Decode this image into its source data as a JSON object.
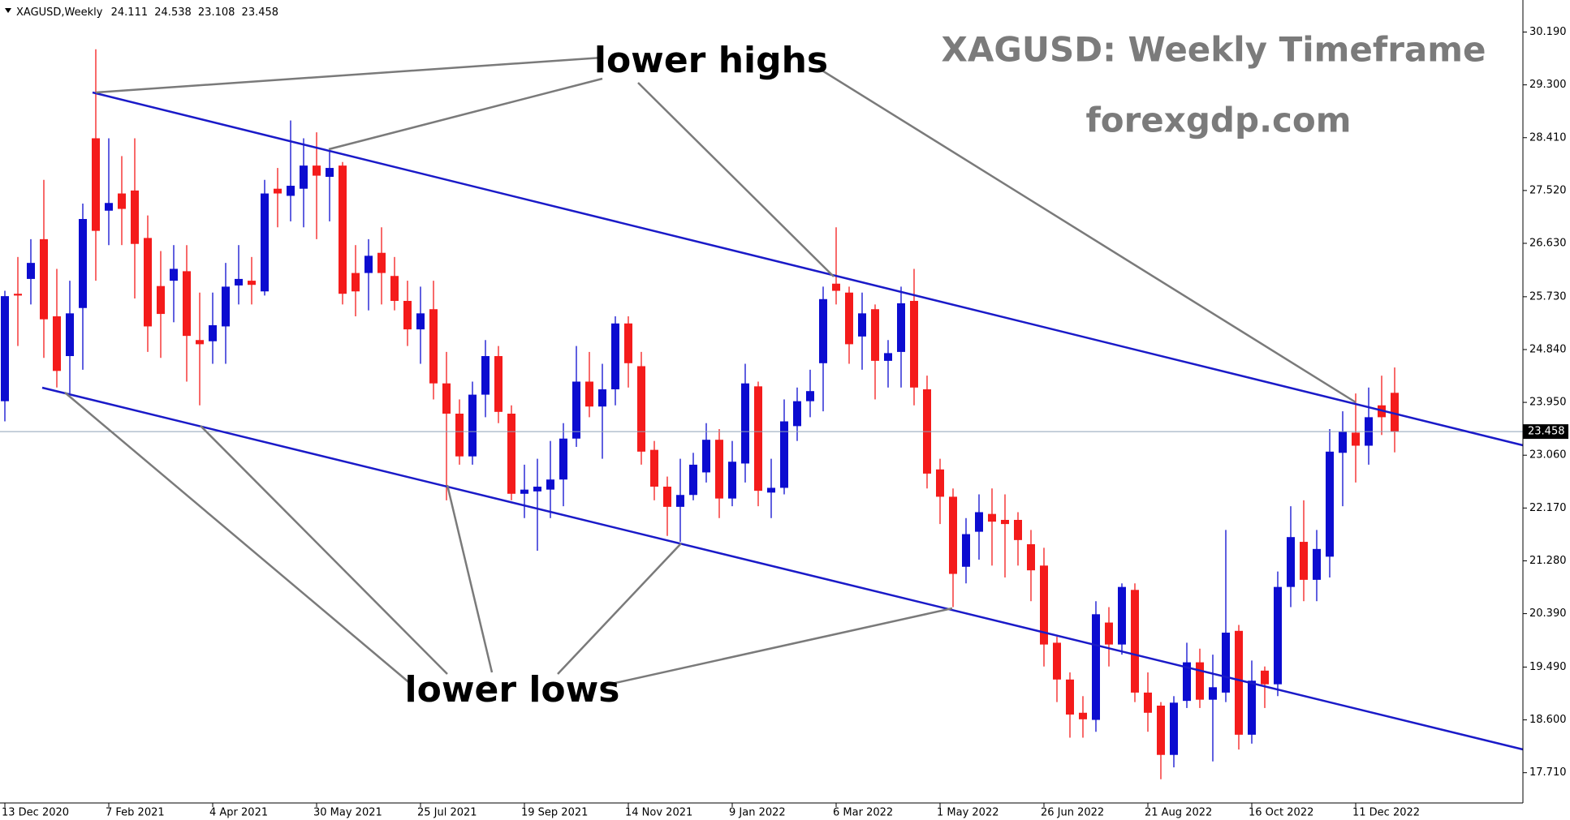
{
  "chart_data": {
    "type": "candlestick",
    "symbol": "XAGUSD,Weekly",
    "title": "XAGUSD: Weekly Timeframe",
    "subtitle": "forexgdp.com",
    "annotations": [
      "lower highs",
      "lower lows"
    ],
    "categories": [
      "13 Dec 2020",
      null,
      null,
      null,
      null,
      null,
      null,
      null,
      "7 Feb 2021",
      null,
      null,
      null,
      null,
      null,
      null,
      null,
      "4 Apr 2021",
      null,
      null,
      null,
      null,
      null,
      null,
      null,
      "30 May 2021",
      null,
      null,
      null,
      null,
      null,
      null,
      null,
      "25 Jul 2021",
      null,
      null,
      null,
      null,
      null,
      null,
      null,
      "19 Sep 2021",
      null,
      null,
      null,
      null,
      null,
      null,
      null,
      "14 Nov 2021",
      null,
      null,
      null,
      null,
      null,
      null,
      null,
      "9 Jan 2022",
      null,
      null,
      null,
      null,
      null,
      null,
      null,
      "6 Mar 2022",
      null,
      null,
      null,
      null,
      null,
      null,
      null,
      "1 May 2022",
      null,
      null,
      null,
      null,
      null,
      null,
      null,
      "26 Jun 2022",
      null,
      null,
      null,
      null,
      null,
      null,
      null,
      "21 Aug 2022",
      null,
      null,
      null,
      null,
      null,
      null,
      null,
      "16 Oct 2022",
      null,
      null,
      null,
      null,
      null,
      null,
      null,
      "11 Dec 2022",
      null,
      null,
      null
    ],
    "open": [
      23.97,
      25.78,
      26.03,
      26.7,
      25.4,
      24.73,
      25.54,
      28.4,
      27.18,
      27.47,
      27.52,
      26.72,
      25.91,
      26.0,
      26.16,
      25.0,
      24.98,
      25.23,
      25.92,
      26.0,
      25.82,
      27.55,
      27.43,
      27.55,
      27.94,
      27.75,
      27.94,
      26.13,
      26.13,
      26.47,
      26.08,
      25.66,
      25.18,
      25.52,
      24.27,
      23.76,
      23.04,
      24.08,
      24.73,
      23.76,
      22.41,
      22.45,
      22.48,
      22.65,
      23.34,
      24.3,
      23.88,
      24.17,
      25.28,
      24.56,
      23.15,
      22.53,
      22.19,
      22.39,
      22.77,
      23.32,
      22.33,
      22.92,
      24.22,
      22.43,
      22.51,
      23.55,
      23.97,
      24.61,
      25.95,
      25.8,
      25.06,
      25.52,
      24.65,
      24.8,
      25.66,
      24.17,
      22.82,
      22.36,
      21.18,
      21.77,
      22.07,
      21.97,
      21.97,
      21.56,
      21.2,
      19.9,
      19.28,
      18.72,
      18.6,
      20.24,
      19.87,
      20.79,
      19.06,
      18.84,
      18.01,
      18.92,
      19.57,
      18.94,
      19.06,
      20.1,
      18.35,
      19.43,
      19.2,
      20.84,
      21.6,
      20.96,
      21.35,
      23.1,
      23.44,
      23.22,
      23.9,
      24.111
    ],
    "high": [
      25.83,
      26.4,
      26.7,
      27.7,
      26.2,
      26.0,
      27.3,
      29.9,
      28.4,
      28.1,
      28.4,
      27.1,
      26.5,
      26.6,
      26.6,
      25.8,
      25.8,
      26.3,
      26.6,
      26.4,
      27.7,
      27.9,
      28.7,
      28.4,
      28.5,
      28.2,
      28.0,
      26.6,
      26.7,
      26.9,
      26.4,
      26.0,
      25.9,
      26.0,
      24.8,
      24.0,
      24.3,
      25.0,
      24.9,
      23.9,
      22.9,
      23.0,
      23.3,
      23.6,
      24.9,
      24.8,
      24.6,
      25.4,
      25.4,
      24.8,
      23.3,
      22.7,
      23.0,
      23.1,
      23.6,
      23.5,
      23.3,
      24.6,
      24.3,
      23.0,
      24.0,
      24.2,
      24.5,
      25.9,
      26.9,
      25.9,
      25.8,
      25.6,
      25.0,
      25.9,
      26.2,
      24.4,
      23.0,
      22.5,
      22.0,
      22.4,
      22.5,
      22.4,
      22.1,
      21.8,
      21.5,
      20.0,
      19.4,
      19.0,
      20.6,
      20.5,
      20.9,
      20.9,
      19.4,
      18.9,
      19.0,
      19.9,
      19.8,
      19.7,
      21.8,
      20.2,
      19.6,
      19.5,
      21.1,
      22.2,
      22.3,
      21.8,
      23.5,
      23.8,
      24.1,
      24.2,
      24.4,
      24.538
    ],
    "low": [
      23.63,
      24.9,
      25.6,
      24.7,
      24.2,
      24.1,
      24.5,
      26.0,
      26.6,
      26.6,
      25.7,
      24.8,
      24.7,
      25.3,
      24.3,
      23.9,
      24.6,
      24.6,
      25.6,
      25.6,
      25.75,
      26.9,
      27.0,
      26.9,
      26.7,
      27.0,
      25.6,
      25.4,
      25.5,
      25.6,
      25.5,
      24.9,
      24.6,
      24.0,
      22.3,
      22.9,
      22.9,
      23.7,
      23.6,
      22.3,
      22.0,
      21.45,
      22.0,
      22.2,
      23.2,
      23.7,
      23.0,
      23.9,
      24.2,
      22.9,
      22.3,
      21.7,
      21.6,
      22.3,
      22.6,
      22.0,
      22.2,
      22.6,
      22.2,
      22.0,
      22.4,
      23.3,
      23.7,
      23.8,
      25.6,
      24.6,
      24.5,
      24.0,
      24.2,
      24.2,
      23.9,
      22.5,
      21.9,
      20.5,
      20.9,
      21.3,
      21.2,
      21.0,
      21.2,
      20.6,
      19.5,
      18.9,
      18.3,
      18.3,
      18.4,
      19.5,
      19.7,
      18.9,
      18.4,
      17.6,
      17.8,
      18.8,
      18.8,
      17.9,
      18.9,
      18.1,
      18.2,
      18.8,
      19.0,
      20.5,
      20.6,
      20.6,
      21.0,
      22.2,
      22.6,
      22.9,
      23.4,
      23.108
    ],
    "close": [
      25.74,
      25.75,
      26.3,
      25.35,
      24.48,
      25.45,
      27.04,
      26.84,
      27.31,
      27.21,
      26.62,
      25.23,
      25.44,
      26.2,
      25.07,
      24.93,
      25.25,
      25.9,
      26.03,
      25.93,
      27.47,
      27.47,
      27.6,
      27.94,
      27.77,
      27.9,
      25.78,
      25.82,
      26.42,
      26.13,
      25.66,
      25.18,
      25.45,
      24.27,
      23.76,
      23.04,
      24.08,
      24.73,
      23.79,
      22.41,
      22.48,
      22.53,
      22.65,
      23.34,
      24.3,
      23.88,
      24.17,
      25.28,
      24.61,
      23.12,
      22.53,
      22.19,
      22.39,
      22.9,
      23.32,
      22.33,
      22.95,
      24.27,
      22.46,
      22.51,
      23.63,
      23.97,
      24.14,
      25.69,
      25.83,
      24.93,
      25.45,
      24.65,
      24.78,
      25.62,
      24.2,
      22.75,
      22.36,
      21.06,
      21.73,
      22.1,
      21.94,
      21.9,
      21.63,
      21.12,
      19.87,
      19.28,
      18.69,
      18.61,
      20.38,
      19.87,
      20.84,
      19.06,
      18.72,
      18.01,
      18.89,
      19.57,
      18.94,
      19.15,
      20.07,
      18.35,
      19.26,
      19.2,
      20.84,
      21.68,
      20.96,
      21.48,
      23.12,
      23.46,
      23.22,
      23.7,
      23.7,
      23.458
    ],
    "up_color": "#0c0cd0",
    "down_color": "#f41b1b",
    "ylim": [
      17.2,
      30.73
    ],
    "yticks": [
      {
        "value": 30.19,
        "label": "30.190"
      },
      {
        "value": 29.3,
        "label": "29.300"
      },
      {
        "value": 28.41,
        "label": "28.410"
      },
      {
        "value": 27.52,
        "label": "27.520"
      },
      {
        "value": 26.63,
        "label": "26.630"
      },
      {
        "value": 25.73,
        "label": "25.730"
      },
      {
        "value": 24.84,
        "label": "24.840"
      },
      {
        "value": 23.95,
        "label": "23.950"
      },
      {
        "value": 23.06,
        "label": "23.060"
      },
      {
        "value": 22.17,
        "label": "22.170"
      },
      {
        "value": 21.28,
        "label": "21.280"
      },
      {
        "value": 20.39,
        "label": "20.390"
      },
      {
        "value": 19.49,
        "label": "19.490"
      },
      {
        "value": 18.6,
        "label": "18.600"
      },
      {
        "value": 17.71,
        "label": "17.710"
      }
    ],
    "grid": false
  }
}
